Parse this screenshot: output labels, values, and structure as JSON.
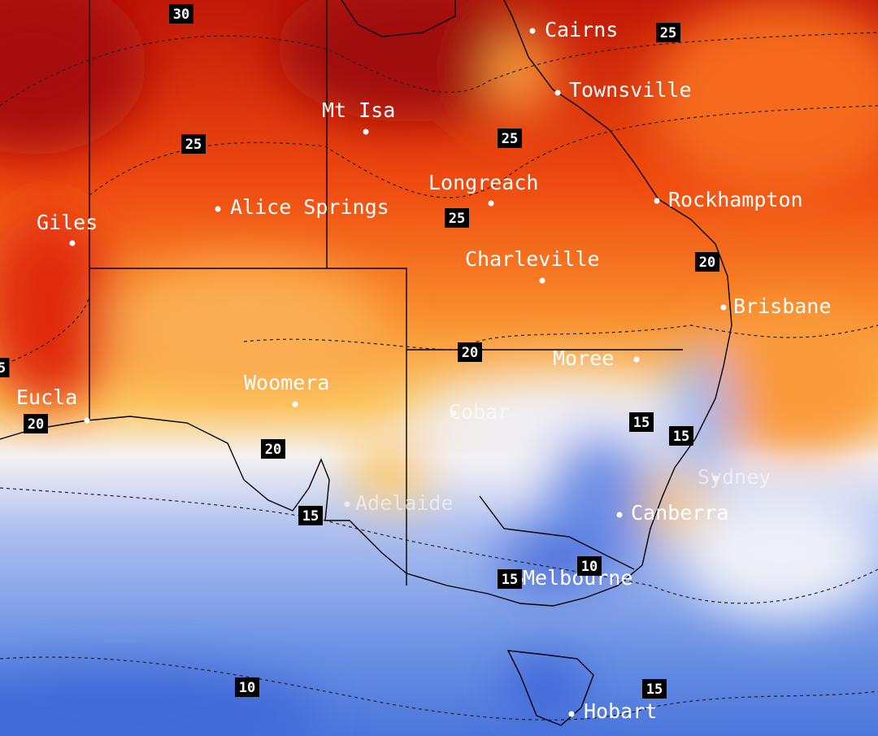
{
  "cities": [
    "Cairns",
    "Townsville",
    "Mt Isa",
    "Longreach",
    "Rockhampton",
    "Alice Springs",
    "Giles",
    "Charleville",
    "Brisbane",
    "Moree",
    "Woomera",
    "Eucla",
    "Cobar",
    "Adelaide",
    "Sydney",
    "Canberra",
    "Melbourne",
    "Hobart"
  ],
  "contour_labels": [
    30,
    25,
    25,
    25,
    25,
    20,
    20,
    20,
    20,
    15,
    15,
    15,
    15,
    10,
    10,
    15,
    5
  ]
}
